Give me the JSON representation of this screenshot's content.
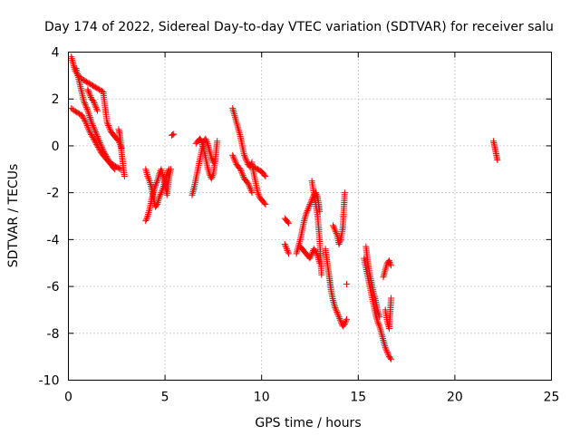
{
  "chart_data": {
    "type": "scatter",
    "title": "Day 174 of 2022, Sidereal Day-to-day VTEC variation (SDTVAR) for receiver salu",
    "xlabel": "GPS time / hours",
    "ylabel": "SDTVAR / TECUs",
    "xlim": [
      0,
      25
    ],
    "ylim": [
      -10,
      4
    ],
    "grid": true,
    "marker": "plus",
    "color": "#ff0000",
    "x_ticks": [
      "0",
      "5",
      "10",
      "15",
      "20",
      "25"
    ],
    "y_ticks": [
      "-10",
      "-8",
      "-6",
      "-4",
      "-2",
      "0",
      "2",
      "4"
    ],
    "series": [
      {
        "name": "SDTVAR",
        "segments": [
          {
            "x": [
              0.15,
              0.25,
              0.35,
              0.5,
              0.65,
              0.8,
              1.0,
              1.2,
              1.4,
              1.6,
              1.8,
              2.0,
              2.2,
              2.4,
              2.6,
              2.75
            ],
            "y": [
              3.8,
              3.5,
              3.2,
              3.0,
              2.9,
              2.8,
              2.7,
              2.6,
              2.5,
              2.4,
              2.3,
              1.0,
              0.6,
              0.4,
              0.2,
              -0.1
            ]
          },
          {
            "x": [
              0.15,
              0.3,
              0.5,
              0.7,
              0.9,
              1.1,
              1.3,
              1.5,
              1.7,
              1.9,
              2.1,
              2.3,
              2.5,
              2.7
            ],
            "y": [
              1.6,
              1.5,
              1.4,
              1.3,
              1.0,
              0.6,
              0.3,
              0.0,
              -0.3,
              -0.5,
              -0.7,
              -0.8,
              -0.9,
              -1.0
            ]
          },
          {
            "x": [
              0.4,
              0.6,
              0.8,
              1.0,
              1.2,
              1.4,
              1.6,
              1.8,
              2.0,
              2.2,
              2.4
            ],
            "y": [
              3.3,
              2.6,
              1.9,
              1.5,
              1.0,
              0.6,
              0.2,
              -0.2,
              -0.5,
              -0.8,
              -1.0
            ]
          },
          {
            "x": [
              1.0,
              1.1,
              1.2,
              1.3,
              1.4,
              1.5
            ],
            "y": [
              2.4,
              2.2,
              2.0,
              1.9,
              1.7,
              1.5
            ]
          },
          {
            "x": [
              2.6,
              2.65,
              2.7,
              2.75,
              2.8,
              2.85,
              2.9
            ],
            "y": [
              0.7,
              0.5,
              0.2,
              -0.3,
              -0.6,
              -1.0,
              -1.3
            ]
          },
          {
            "x": [
              4.0,
              4.1,
              4.2,
              4.3,
              4.4,
              4.5,
              4.6,
              4.7,
              4.8,
              4.9,
              5.0,
              5.1,
              5.2,
              5.3
            ],
            "y": [
              -3.2,
              -3.0,
              -2.7,
              -2.3,
              -2.0,
              -1.7,
              -1.5,
              -1.2,
              -1.0,
              -1.3,
              -1.6,
              -2.1,
              -1.4,
              -1.0
            ]
          },
          {
            "x": [
              4.0,
              4.1,
              4.2,
              4.3,
              4.4,
              4.5,
              4.6,
              4.7,
              4.8,
              4.9,
              5.0,
              5.1,
              5.2
            ],
            "y": [
              -1.0,
              -1.3,
              -1.5,
              -1.8,
              -2.2,
              -2.6,
              -2.5,
              -2.2,
              -2.0,
              -1.8,
              -1.5,
              -1.2,
              -1.0
            ]
          },
          {
            "x": [
              5.35,
              5.45
            ],
            "y": [
              0.45,
              0.5
            ]
          },
          {
            "x": [
              6.4,
              6.5,
              6.6,
              6.7,
              6.8,
              6.9,
              7.0,
              7.1,
              7.2,
              7.3,
              7.4,
              7.5
            ],
            "y": [
              -2.1,
              -1.8,
              -1.4,
              -1.0,
              -0.6,
              -0.2,
              0.2,
              0.3,
              0.1,
              -0.2,
              -0.5,
              -0.7
            ]
          },
          {
            "x": [
              6.6,
              6.7,
              6.8,
              6.9,
              7.0,
              7.1,
              7.2,
              7.3,
              7.4,
              7.5,
              7.6,
              7.7
            ],
            "y": [
              0.1,
              0.2,
              0.3,
              0.2,
              -0.1,
              -0.5,
              -0.9,
              -1.2,
              -1.4,
              -1.2,
              -0.6,
              0.2
            ]
          },
          {
            "x": [
              8.5,
              8.6,
              8.7,
              8.8,
              8.9,
              9.0,
              9.1,
              9.2,
              9.3,
              9.4,
              9.5
            ],
            "y": [
              1.6,
              1.3,
              1.0,
              0.7,
              0.4,
              0.0,
              -0.4,
              -0.6,
              -0.8,
              -0.9,
              -0.7
            ]
          },
          {
            "x": [
              8.5,
              8.6,
              8.7,
              8.8,
              8.9,
              9.0,
              9.1,
              9.2,
              9.3,
              9.4,
              9.5
            ],
            "y": [
              -0.4,
              -0.6,
              -0.8,
              -0.9,
              -1.0,
              -1.2,
              -1.4,
              -1.5,
              -1.6,
              -1.8,
              -2.0
            ]
          },
          {
            "x": [
              9.5,
              9.6,
              9.7,
              9.8,
              9.9,
              10.0,
              10.1,
              10.2
            ],
            "y": [
              -0.8,
              -1.2,
              -1.6,
              -2.0,
              -2.2,
              -2.3,
              -2.4,
              -2.5
            ]
          },
          {
            "x": [
              9.6,
              9.8,
              10.0,
              10.2
            ],
            "y": [
              -0.9,
              -1.0,
              -1.1,
              -1.3
            ]
          },
          {
            "x": [
              11.2,
              11.3,
              11.4
            ],
            "y": [
              -3.1,
              -3.2,
              -3.3
            ]
          },
          {
            "x": [
              11.2,
              11.3,
              11.4
            ],
            "y": [
              -4.2,
              -4.4,
              -4.6
            ]
          },
          {
            "x": [
              11.8,
              11.9,
              12.0,
              12.1,
              12.2,
              12.3,
              12.4,
              12.5,
              12.6,
              12.7,
              12.8,
              12.9,
              13.0
            ],
            "y": [
              -4.6,
              -4.3,
              -4.0,
              -3.6,
              -3.2,
              -2.9,
              -2.7,
              -2.5,
              -2.3,
              -2.1,
              -2.0,
              -2.2,
              -2.8
            ]
          },
          {
            "x": [
              12.0,
              12.2,
              12.4,
              12.5,
              12.6,
              12.7,
              12.8,
              12.9,
              13.0
            ],
            "y": [
              -4.3,
              -4.5,
              -4.7,
              -4.8,
              -4.6,
              -4.4,
              -4.5,
              -4.7,
              -5.0
            ]
          },
          {
            "x": [
              12.6,
              12.7,
              12.8,
              12.9,
              13.0,
              13.1
            ],
            "y": [
              -1.5,
              -2.0,
              -2.5,
              -3.0,
              -4.0,
              -5.5
            ]
          },
          {
            "x": [
              13.3,
              13.4,
              13.5,
              13.6,
              13.7,
              13.8,
              13.9,
              14.0,
              14.1,
              14.2,
              14.3,
              14.4
            ],
            "y": [
              -4.4,
              -5.0,
              -5.6,
              -6.2,
              -6.6,
              -6.9,
              -7.1,
              -7.3,
              -7.5,
              -7.7,
              -7.6,
              -7.4
            ]
          },
          {
            "x": [
              13.7,
              13.8,
              13.9,
              14.0,
              14.1,
              14.2,
              14.3
            ],
            "y": [
              -3.4,
              -3.6,
              -3.8,
              -4.2,
              -4.0,
              -3.5,
              -2.0
            ]
          },
          {
            "x": [
              14.4
            ],
            "y": [
              -5.9
            ]
          },
          {
            "x": [
              15.3,
              15.4,
              15.5,
              15.6,
              15.7,
              15.8,
              15.9,
              16.0,
              16.1,
              16.2,
              16.3,
              16.4,
              16.5,
              16.6,
              16.7
            ],
            "y": [
              -4.8,
              -5.2,
              -5.6,
              -6.0,
              -6.4,
              -6.8,
              -7.2,
              -7.5,
              -7.7,
              -8.0,
              -8.3,
              -8.6,
              -8.8,
              -9.0,
              -9.1
            ]
          },
          {
            "x": [
              15.4,
              15.5,
              15.6,
              15.7,
              15.8,
              15.9,
              16.0,
              16.1
            ],
            "y": [
              -4.3,
              -5.0,
              -5.5,
              -5.9,
              -6.3,
              -6.6,
              -7.0,
              -7.3
            ]
          },
          {
            "x": [
              16.3,
              16.4,
              16.5,
              16.6,
              16.7
            ],
            "y": [
              -5.6,
              -5.3,
              -5.0,
              -4.9,
              -5.1
            ]
          },
          {
            "x": [
              16.4,
              16.5,
              16.6,
              16.7
            ],
            "y": [
              -7.0,
              -7.5,
              -7.8,
              -6.5
            ]
          },
          {
            "x": [
              22.0,
              22.05,
              22.1,
              22.15,
              22.2
            ],
            "y": [
              0.2,
              0.0,
              -0.2,
              -0.4,
              -0.6
            ]
          }
        ]
      }
    ]
  }
}
